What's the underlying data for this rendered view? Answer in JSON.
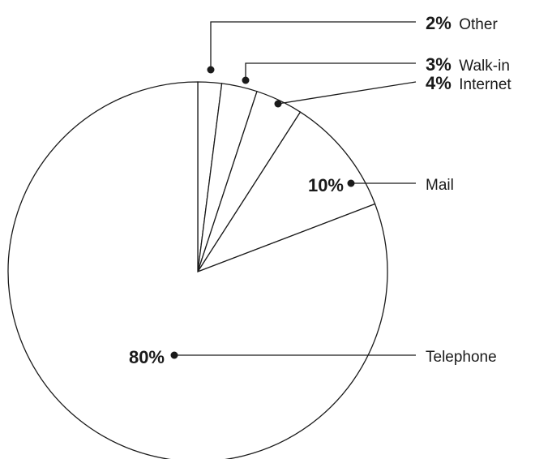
{
  "chart_data": {
    "type": "pie",
    "slices": [
      {
        "label": "Other",
        "percent_label": "2%",
        "value": 2
      },
      {
        "label": "Walk-in",
        "percent_label": "3%",
        "value": 3
      },
      {
        "label": "Internet",
        "percent_label": "4%",
        "value": 4
      },
      {
        "label": "Mail",
        "percent_label": "10%",
        "value": 10
      },
      {
        "label": "Telephone",
        "percent_label": "80%",
        "value": 80
      }
    ]
  }
}
